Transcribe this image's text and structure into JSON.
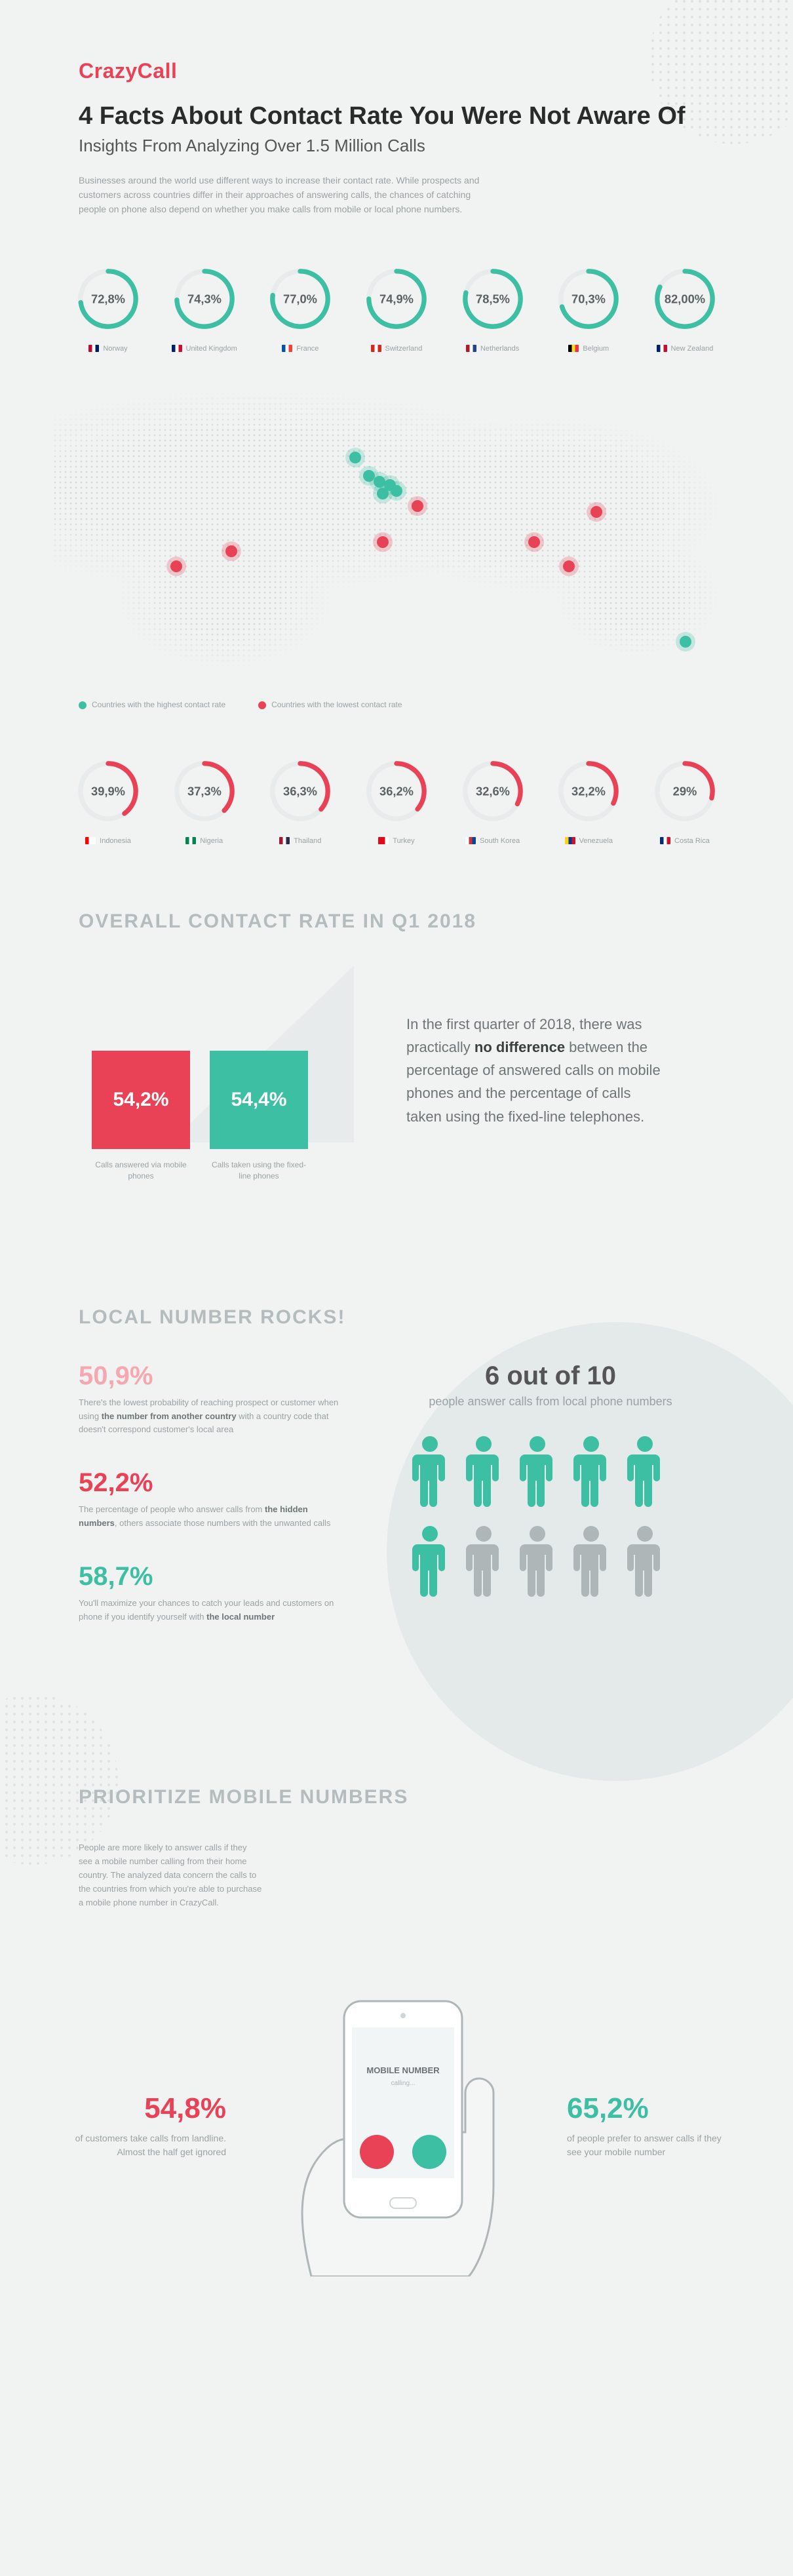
{
  "brand": {
    "part1": "Crazy",
    "part2": "Call"
  },
  "title": "4 Facts About Contact Rate You Were Not Aware Of",
  "subtitle": "Insights From Analyzing Over 1.5 Million Calls",
  "intro": "Businesses around the world use different ways to increase their contact rate. While prospects and customers across countries differ in their approaches of answering calls, the chances of catching people on phone also depend on whether you make calls from mobile or local phone numbers.",
  "colors": {
    "teal": "#3dbfa3",
    "red": "#e94256",
    "pink": "#f5a8b0",
    "grey_track": "#e5e9ea",
    "text_muted": "#9aa2a4",
    "person_grey": "#aeb6b8"
  },
  "donut_style": {
    "radius": 46,
    "stroke_width": 8,
    "track_color": "#e7ebeb"
  },
  "countries_high": [
    {
      "name": "Norway",
      "value": 72.8,
      "label": "72,8%",
      "flag": [
        "#ba0c2f",
        "#ffffff",
        "#00205b"
      ]
    },
    {
      "name": "United Kingdom",
      "value": 74.3,
      "label": "74,3%",
      "flag": [
        "#012169",
        "#ffffff",
        "#c8102e"
      ]
    },
    {
      "name": "France",
      "value": 77.0,
      "label": "77,0%",
      "flag": [
        "#0055a4",
        "#ffffff",
        "#ef4135"
      ]
    },
    {
      "name": "Switzerland",
      "value": 74.9,
      "label": "74,9%",
      "flag": [
        "#d52b1e",
        "#ffffff",
        "#d52b1e"
      ]
    },
    {
      "name": "Netherlands",
      "value": 78.5,
      "label": "78,5%",
      "flag": [
        "#ae1c28",
        "#ffffff",
        "#21468b"
      ]
    },
    {
      "name": "Belgium",
      "value": 70.3,
      "label": "70,3%",
      "flag": [
        "#000000",
        "#fdda24",
        "#ef3340"
      ]
    },
    {
      "name": "New Zealand",
      "value": 82.0,
      "label": "82,00%",
      "flag": [
        "#012169",
        "#ffffff",
        "#c8102e"
      ]
    }
  ],
  "countries_low": [
    {
      "name": "Indonesia",
      "value": 39.9,
      "label": "39,9%",
      "flag": [
        "#ff0000",
        "#ffffff",
        "#ffffff"
      ]
    },
    {
      "name": "Nigeria",
      "value": 37.3,
      "label": "37,3%",
      "flag": [
        "#008751",
        "#ffffff",
        "#008751"
      ]
    },
    {
      "name": "Thailand",
      "value": 36.3,
      "label": "36,3%",
      "flag": [
        "#a51931",
        "#f4f5f8",
        "#2d2a4a"
      ]
    },
    {
      "name": "Turkey",
      "value": 36.2,
      "label": "36,2%",
      "flag": [
        "#e30a17",
        "#e30a17",
        "#ffffff"
      ]
    },
    {
      "name": "South Korea",
      "value": 32.6,
      "label": "32,6%",
      "flag": [
        "#ffffff",
        "#cd2e3a",
        "#0047a0"
      ]
    },
    {
      "name": "Venezuela",
      "value": 32.2,
      "label": "32,2%",
      "flag": [
        "#fcd116",
        "#003893",
        "#ce1126"
      ]
    },
    {
      "name": "Costa Rica",
      "value": 29.0,
      "label": "29%",
      "flag": [
        "#002b7f",
        "#ffffff",
        "#ce1126"
      ]
    }
  ],
  "map_markers": [
    {
      "kind": "teal",
      "x": 44,
      "y": 24
    },
    {
      "kind": "teal",
      "x": 46,
      "y": 30
    },
    {
      "kind": "teal",
      "x": 47.5,
      "y": 32
    },
    {
      "kind": "teal",
      "x": 49,
      "y": 33
    },
    {
      "kind": "teal",
      "x": 48,
      "y": 36
    },
    {
      "kind": "teal",
      "x": 50,
      "y": 35
    },
    {
      "kind": "teal",
      "x": 92,
      "y": 85
    },
    {
      "kind": "red",
      "x": 53,
      "y": 40
    },
    {
      "kind": "red",
      "x": 48,
      "y": 52
    },
    {
      "kind": "red",
      "x": 70,
      "y": 52
    },
    {
      "kind": "red",
      "x": 75,
      "y": 60
    },
    {
      "kind": "red",
      "x": 79,
      "y": 42
    },
    {
      "kind": "red",
      "x": 26,
      "y": 55
    },
    {
      "kind": "red",
      "x": 18,
      "y": 60
    }
  ],
  "legend": {
    "high": "Countries with the highest contact rate",
    "low": "Countries with the lowest contact rate"
  },
  "q1": {
    "heading": "OVERALL CONTACT RATE IN Q1 2018",
    "bar1": {
      "value": "54,2%",
      "label": "Calls answered via mobile phones"
    },
    "bar2": {
      "value": "54,4%",
      "label": "Calls taken using the fixed-line phones"
    },
    "text_pre": "In the first quarter of 2018, there was practically ",
    "text_bold": "no difference",
    "text_post": " between the percentage of answered calls on mobile phones and the percentage of calls taken using the fixed-line telephones."
  },
  "local": {
    "heading": "LOCAL NUMBER ROCKS!",
    "stats": [
      {
        "n": "50,9%",
        "color": "#f5a8b0",
        "d_pre": "There's the lowest probability of reaching prospect or customer when using ",
        "d_b": "the number from another country",
        "d_post": " with a country code that doesn't correspond customer's local area"
      },
      {
        "n": "52,2%",
        "color": "#e94256",
        "d_pre": "The percentage of people who answer calls from ",
        "d_b": "the hidden numbers",
        "d_post": ", others associate those numbers with the unwanted calls"
      },
      {
        "n": "58,7%",
        "color": "#3dbfa3",
        "d_pre": "You'll maximize your chances to catch your leads and customers on phone if you identify yourself with ",
        "d_b": "the local number",
        "d_post": ""
      }
    ],
    "six_title": "6 out of 10",
    "six_sub": "people answer calls from local phone numbers",
    "people_colored": 6,
    "people_total": 10
  },
  "mobile": {
    "heading": "PRIORITIZE MOBILE NUMBERS",
    "intro": "People are more likely to answer calls if they see a mobile number calling from their home country. The analyzed data concern the calls to the countries from which you're able to purchase a mobile phone number in CrazyCall.",
    "left": {
      "n": "54,8%",
      "color": "#e94256",
      "d": "of customers take calls from landline. Almost the half get ignored"
    },
    "right": {
      "n": "65,2%",
      "color": "#3dbfa3",
      "d": "of people prefer to answer calls if they see your mobile number"
    },
    "phone_label": "MOBILE NUMBER",
    "phone_sub": "calling..."
  }
}
